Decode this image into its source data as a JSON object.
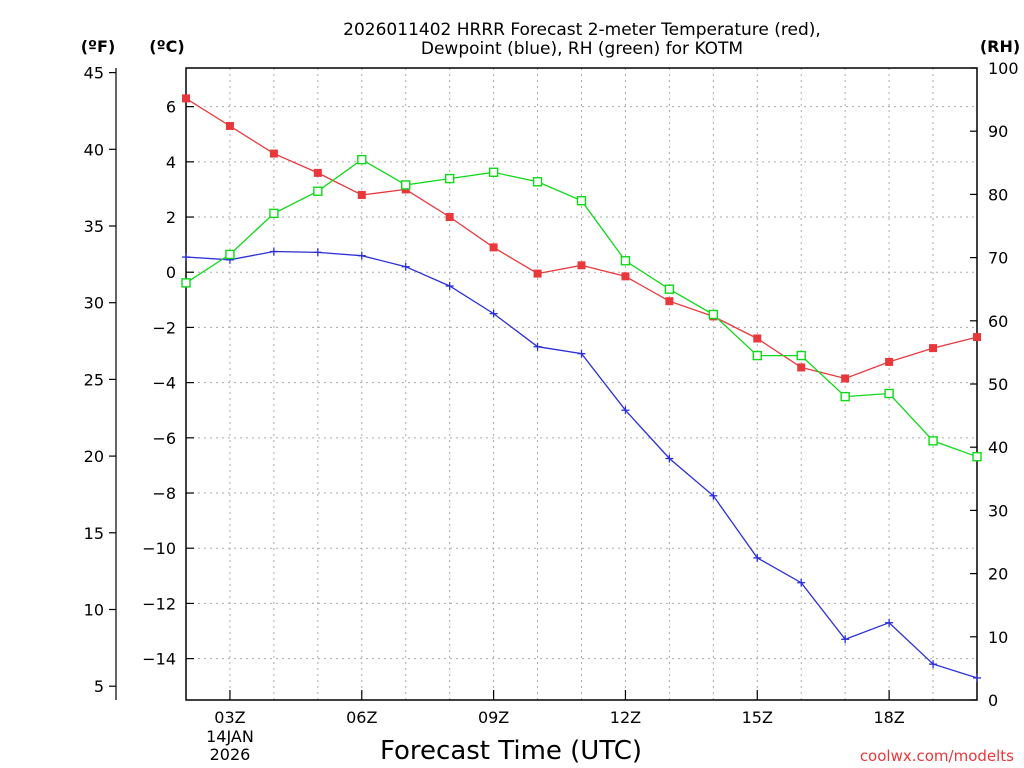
{
  "chart_data": {
    "type": "line",
    "title": [
      "2026011402 HRRR Forecast 2-meter Temperature (red),",
      "Dewpoint (blue), RH (green) for KOTM"
    ],
    "xlabel": "Forecast Time (UTC)",
    "credit": "coolwx.com/modelts",
    "units": {
      "left_f": "(ºF)",
      "left_c": "(ºC)",
      "right_rh": "(RH)"
    },
    "x_hours": [
      2,
      3,
      4,
      5,
      6,
      7,
      8,
      9,
      10,
      11,
      12,
      13,
      14,
      15,
      16,
      17,
      18,
      19,
      20
    ],
    "x_ticks": [
      {
        "hour": 3,
        "label": "03Z",
        "sub": [
          "14JAN",
          "2026"
        ]
      },
      {
        "hour": 6,
        "label": "06Z",
        "sub": []
      },
      {
        "hour": 9,
        "label": "09Z",
        "sub": []
      },
      {
        "hour": 12,
        "label": "12Z",
        "sub": []
      },
      {
        "hour": 15,
        "label": "15Z",
        "sub": []
      },
      {
        "hour": 18,
        "label": "18Z",
        "sub": []
      }
    ],
    "ylim_c": [
      -15.5,
      7.4
    ],
    "ylim_f": [
      4.1,
      45.3
    ],
    "ylim_rh": [
      0,
      100
    ],
    "yticks_c": [
      6,
      4,
      2,
      0,
      -2,
      -4,
      -6,
      -8,
      -10,
      -12,
      -14
    ],
    "yticks_f": [
      45,
      40,
      35,
      30,
      25,
      20,
      15,
      10,
      5
    ],
    "yticks_rh": [
      100,
      90,
      80,
      70,
      60,
      50,
      40,
      30,
      20,
      10,
      0
    ],
    "grid": true,
    "series": [
      {
        "name": "Temperature",
        "axis": "c",
        "color": "#e8383c",
        "marker": "filled-square",
        "values": [
          6.3,
          5.3,
          4.3,
          3.6,
          2.8,
          3.0,
          2.0,
          0.9,
          -0.05,
          0.25,
          -0.15,
          -1.05,
          -1.6,
          -2.4,
          -3.45,
          -3.85,
          -3.25,
          -2.75,
          -2.35
        ]
      },
      {
        "name": "Dewpoint",
        "axis": "c",
        "color": "#2b2fd8",
        "marker": "plus",
        "values": [
          0.55,
          0.45,
          0.75,
          0.72,
          0.6,
          0.2,
          -0.5,
          -1.5,
          -2.7,
          -2.95,
          -5.0,
          -6.75,
          -8.1,
          -10.35,
          -11.25,
          -13.3,
          -12.7,
          -14.2,
          -14.7
        ]
      },
      {
        "name": "RH",
        "axis": "rh",
        "color": "#10d81a",
        "marker": "open-square",
        "values": [
          66,
          70.5,
          77,
          80.5,
          85.5,
          81.5,
          82.5,
          83.5,
          82,
          79,
          69.5,
          65,
          61,
          54.5,
          54.5,
          48,
          48.5,
          41,
          38.5
        ]
      }
    ]
  }
}
